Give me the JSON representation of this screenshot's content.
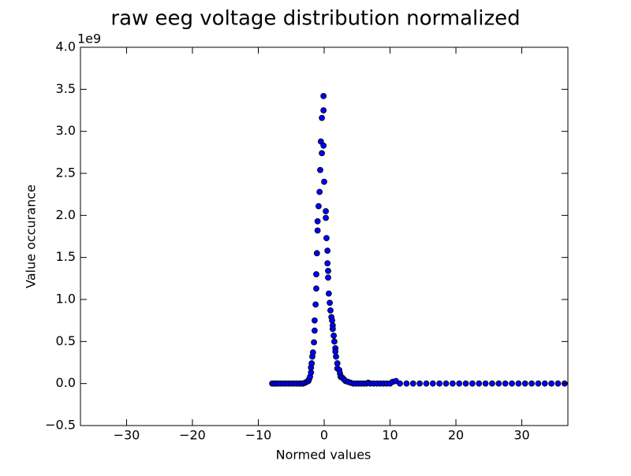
{
  "chart_data": {
    "type": "scatter",
    "title": "raw eeg voltage distribution normalized",
    "x_label": "Normed values",
    "y_label": "Value occurance",
    "y_offset_label": "1e9",
    "color": "#0000ff",
    "xlim": [
      -37,
      37
    ],
    "ylim": [
      -0.5,
      4.0
    ],
    "xticks": [
      {
        "value": -30,
        "label": "−30"
      },
      {
        "value": -20,
        "label": "−20"
      },
      {
        "value": -10,
        "label": "−10"
      },
      0,
      10,
      20,
      30
    ],
    "yticks": [
      {
        "value": -0.5,
        "label": "−0.5"
      },
      {
        "value": 0,
        "label": "0.0"
      },
      0.5,
      {
        "value": 1,
        "label": "1.0"
      },
      1.5,
      {
        "value": 2,
        "label": "2.0"
      },
      2.5,
      {
        "value": 3,
        "label": "3.0"
      },
      3.5,
      {
        "value": 4,
        "label": "4.0"
      }
    ],
    "x": [
      -7.9,
      -7.6,
      -7.3,
      -7.0,
      -6.6,
      -6.2,
      -5.8,
      -5.4,
      -5.0,
      -4.6,
      -4.2,
      -3.8,
      -3.5,
      -3.2,
      -2.9,
      -2.65,
      -2.4,
      -2.3,
      -2.15,
      -2.0,
      -2.0,
      -1.9,
      -1.8,
      -1.7,
      -1.55,
      -1.45,
      -1.45,
      -1.3,
      -1.2,
      -1.2,
      -1.1,
      -1.0,
      -1.0,
      -0.85,
      -0.7,
      -0.6,
      -0.5,
      -0.35,
      -0.35,
      -0.1,
      -0.1,
      -0.1,
      0.0,
      0.25,
      0.25,
      0.35,
      0.5,
      0.5,
      0.6,
      0.6,
      0.7,
      0.85,
      0.95,
      1.1,
      1.2,
      1.3,
      1.3,
      1.45,
      1.55,
      1.7,
      1.7,
      1.8,
      2.0,
      2.0,
      2.3,
      2.4,
      2.5,
      2.75,
      3.0,
      3.25,
      3.6,
      4.0,
      4.4,
      4.8,
      5.2,
      5.6,
      6.0,
      6.4,
      6.7,
      7.0,
      7.5,
      8.0,
      8.5,
      9.0,
      9.5,
      10.0,
      10.4,
      10.9,
      11.5,
      12.5,
      13.5,
      14.5,
      15.5,
      16.5,
      17.5,
      18.5,
      19.5,
      20.5,
      21.5,
      22.5,
      23.5,
      24.5,
      25.5,
      26.5,
      27.5,
      28.5,
      29.5,
      30.5,
      31.5,
      32.5,
      33.5,
      34.5,
      35.5,
      36.5
    ],
    "values": [
      0,
      0,
      0,
      0,
      0,
      0,
      0,
      0,
      0,
      0,
      0,
      0,
      0,
      0,
      0.01,
      0.02,
      0.03,
      0.05,
      0.08,
      0.19,
      0.13,
      0.24,
      0.32,
      0.37,
      0.49,
      0.75,
      0.63,
      0.94,
      1.3,
      1.13,
      1.55,
      1.93,
      1.82,
      2.11,
      2.28,
      2.54,
      2.88,
      3.16,
      2.74,
      3.42,
      3.25,
      2.83,
      2.4,
      2.05,
      1.97,
      1.73,
      1.58,
      1.43,
      1.34,
      1.26,
      1.07,
      0.96,
      0.87,
      0.79,
      0.75,
      0.69,
      0.65,
      0.57,
      0.5,
      0.42,
      0.38,
      0.32,
      0.24,
      0.18,
      0.16,
      0.12,
      0.08,
      0.07,
      0.05,
      0.03,
      0.02,
      0.01,
      0,
      0,
      0,
      0,
      0,
      0,
      0.01,
      0,
      0,
      0,
      0,
      0,
      0,
      0,
      0.02,
      0.03,
      0,
      0,
      0,
      0,
      0,
      0,
      0,
      0,
      0,
      0,
      0,
      0,
      0,
      0,
      0,
      0,
      0,
      0,
      0,
      0,
      0,
      0,
      0,
      0,
      0,
      0
    ]
  }
}
